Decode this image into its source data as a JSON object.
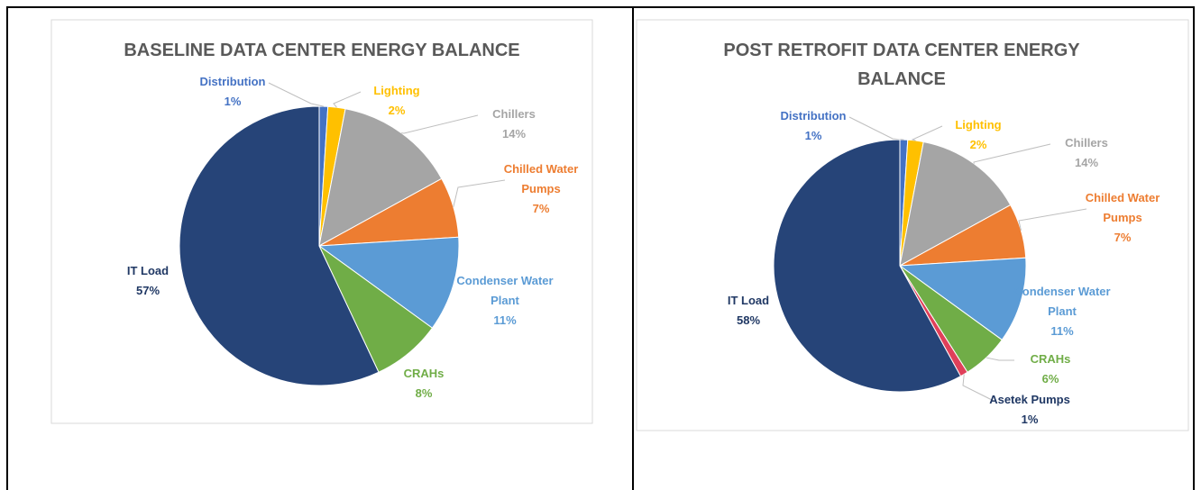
{
  "chart_data": [
    {
      "type": "pie",
      "title": "BASELINE DATA CENTER ENERGY BALANCE",
      "categories": [
        "Distribution",
        "Lighting",
        "Chillers",
        "Chilled Water Pumps",
        "Condenser Water Plant",
        "CRAHs",
        "IT Load"
      ],
      "values": [
        1,
        2,
        14,
        7,
        11,
        8,
        57
      ],
      "value_labels": [
        "1%",
        "2%",
        "14%",
        "7%",
        "11%",
        "8%",
        "57%"
      ],
      "colors": [
        "#4472c4",
        "#ffc000",
        "#a5a5a5",
        "#ed7d31",
        "#5b9bd5",
        "#70ad47",
        "#264478"
      ]
    },
    {
      "type": "pie",
      "title": "POST RETROFIT DATA CENTER ENERGY BALANCE",
      "categories": [
        "Distribution",
        "Lighting",
        "Chillers",
        "Chilled Water Pumps",
        "Condenser Water Plant",
        "CRAHs",
        "Asetek Pumps",
        "IT Load"
      ],
      "values": [
        1,
        2,
        14,
        7,
        11,
        6,
        1,
        58
      ],
      "value_labels": [
        "1%",
        "2%",
        "14%",
        "7%",
        "11%",
        "6%",
        "1%",
        "58%"
      ],
      "colors": [
        "#4472c4",
        "#ffc000",
        "#a5a5a5",
        "#ed7d31",
        "#5b9bd5",
        "#70ad47",
        "#e0405a",
        "#264478"
      ]
    }
  ]
}
